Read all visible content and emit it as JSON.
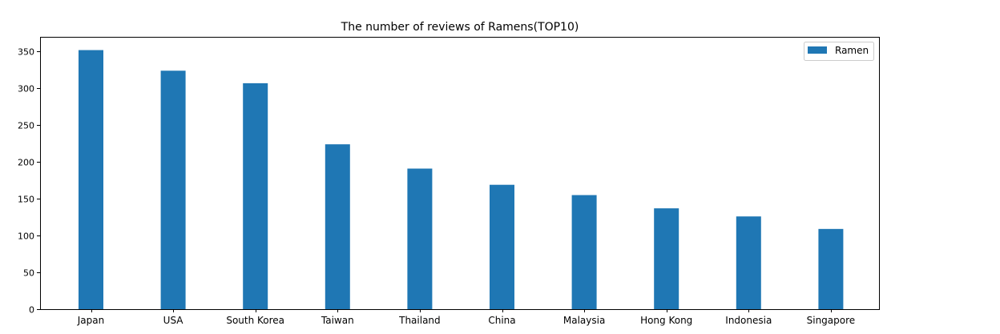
{
  "chart_data": {
    "type": "bar",
    "title": "The number of reviews of Ramens(TOP10)",
    "xlabel": "",
    "ylabel": "",
    "categories": [
      "Japan",
      "USA",
      "South Korea",
      "Taiwan",
      "Thailand",
      "China",
      "Malaysia",
      "Hong Kong",
      "Indonesia",
      "Singapore"
    ],
    "series": [
      {
        "name": "Ramen",
        "color": "#1f77b4",
        "values": [
          352,
          324,
          307,
          224,
          191,
          169,
          155,
          137,
          126,
          109
        ]
      }
    ],
    "ylim": [
      0,
      370
    ],
    "yticks": [
      0,
      50,
      100,
      150,
      200,
      250,
      300,
      350
    ],
    "grid": false,
    "legend": "top-right"
  }
}
